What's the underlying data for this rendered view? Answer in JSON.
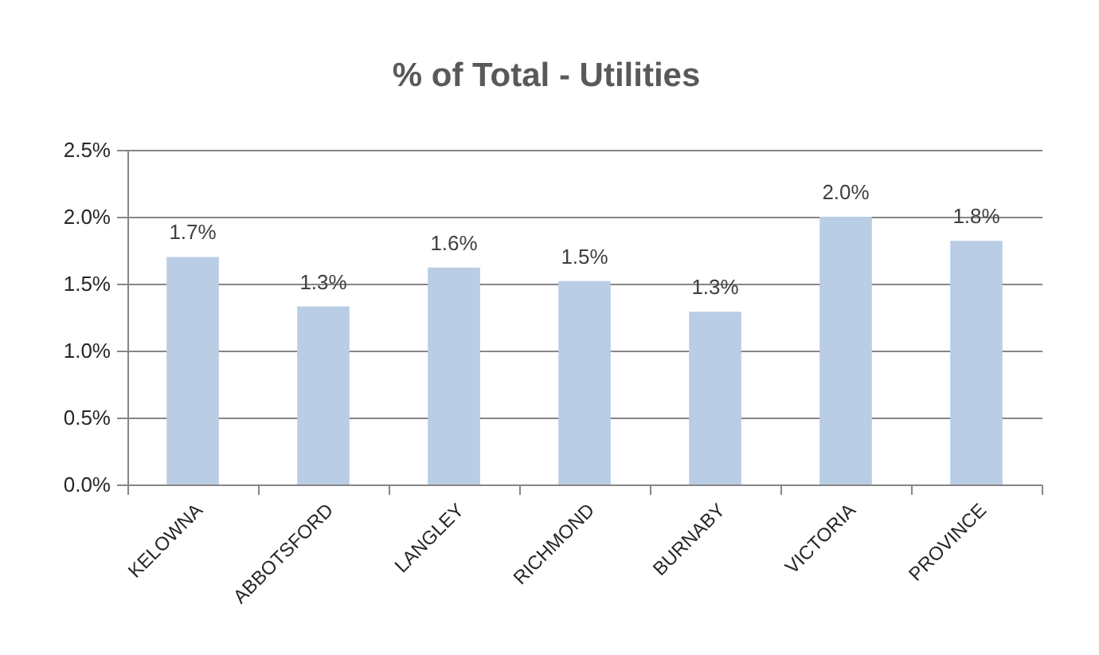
{
  "chart_data": {
    "type": "bar",
    "title": "% of Total - Utilities",
    "categories": [
      "KELOWNA",
      "ABBOTSFORD",
      "LANGLEY",
      "RICHMOND",
      "BURNABY",
      "VICTORIA",
      "PROVINCE"
    ],
    "values": [
      1.7,
      1.33,
      1.62,
      1.52,
      1.29,
      2.0,
      1.82
    ],
    "value_labels": [
      "1.7%",
      "1.3%",
      "1.6%",
      "1.5%",
      "1.3%",
      "2.0%",
      "1.8%"
    ],
    "color": "#b9cde5",
    "ylim": [
      0,
      2.5
    ],
    "yticks": [
      {
        "value": 0,
        "label": "0.0%"
      },
      {
        "value": 0.5,
        "label": "0.5%"
      },
      {
        "value": 1,
        "label": "1.0%"
      },
      {
        "value": 1.5,
        "label": "1.5%"
      },
      {
        "value": 2,
        "label": "2.0%"
      },
      {
        "value": 2.5,
        "label": "2.5%"
      }
    ],
    "grid": "y"
  }
}
